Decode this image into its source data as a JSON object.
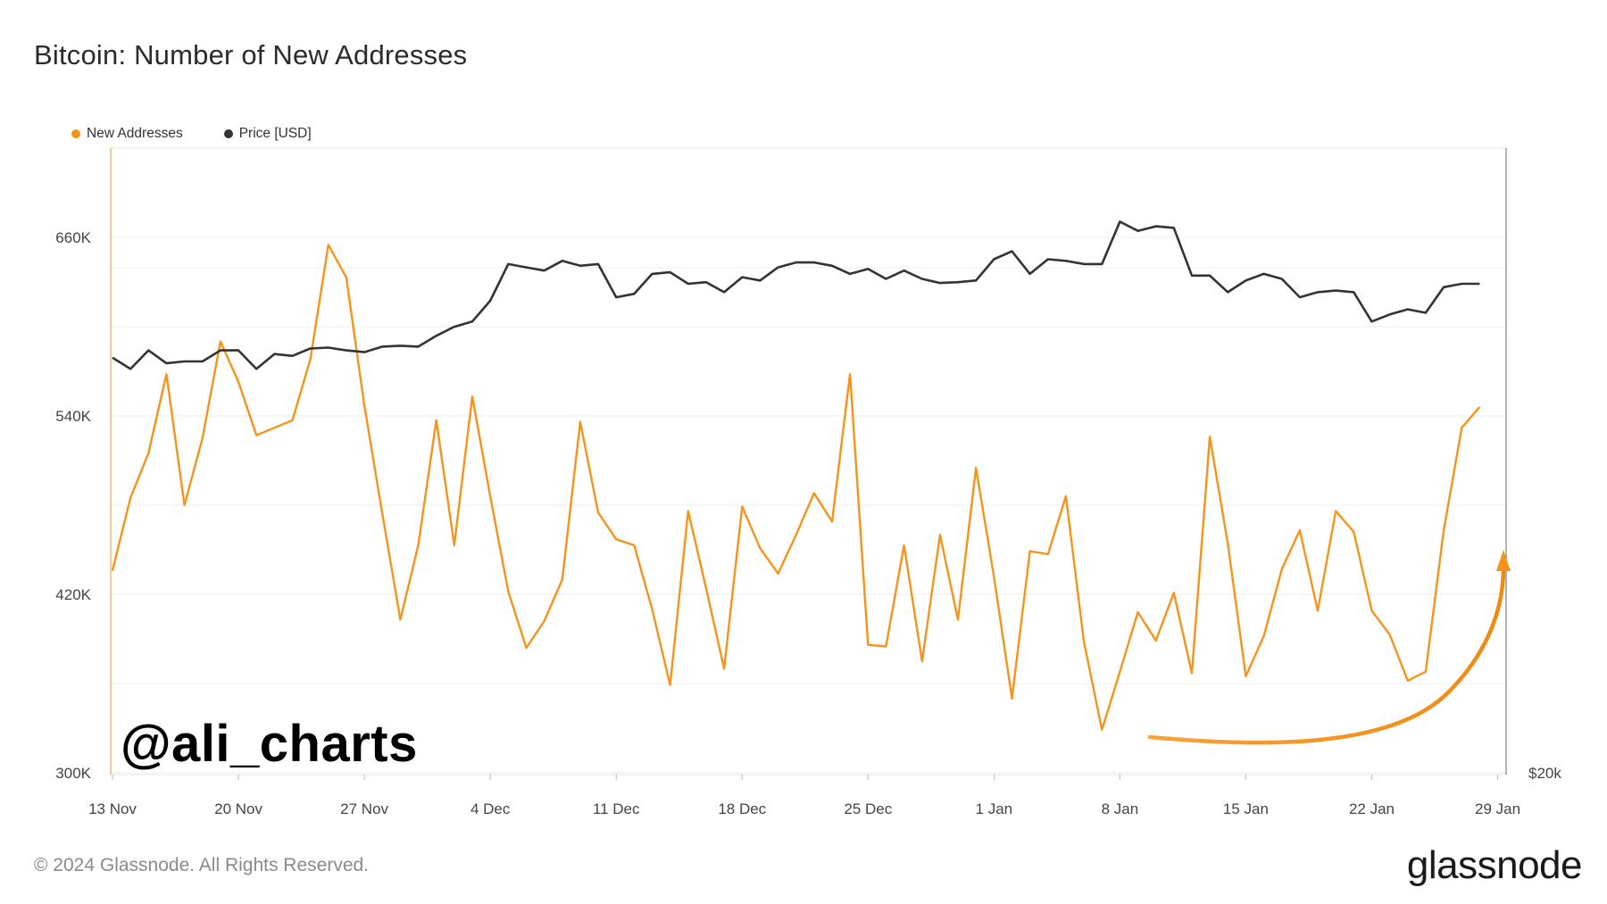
{
  "title": "Bitcoin: Number of New Addresses",
  "legend": [
    {
      "label": "New Addresses",
      "color": "#f7931a"
    },
    {
      "label": "Price [USD]",
      "color": "#333333"
    }
  ],
  "watermark": "@ali_charts",
  "footer": "© 2024 Glassnode. All Rights Reserved.",
  "brand": "glassnode",
  "colors": {
    "new_addresses": "#f7931a",
    "price": "#333333",
    "arrow": "#f7931a",
    "grid": "#ececec"
  },
  "chart_data": {
    "type": "line",
    "title": "Bitcoin: Number of New Addresses",
    "x_start": "2023-11-13",
    "x_ticks": [
      "13 Nov",
      "20 Nov",
      "27 Nov",
      "4 Dec",
      "11 Dec",
      "18 Dec",
      "25 Dec",
      "1 Jan",
      "8 Jan",
      "15 Jan",
      "22 Jan",
      "29 Jan"
    ],
    "y_left": {
      "ticks": [
        "300K",
        "420K",
        "540K",
        "660K"
      ],
      "range": [
        300000,
        720000
      ]
    },
    "y_right": {
      "ticks": [
        "$20k"
      ],
      "scale": "log"
    },
    "grid": true,
    "legend_position": "top-left",
    "series": [
      {
        "name": "New Addresses",
        "axis": "left",
        "values": [
          436000,
          485000,
          515000,
          568000,
          480000,
          525000,
          590000,
          563000,
          527000,
          532000,
          537000,
          578000,
          655000,
          633000,
          547000,
          474000,
          403000,
          453000,
          537000,
          453000,
          553000,
          486000,
          422000,
          384000,
          402000,
          430000,
          536000,
          475000,
          457000,
          453000,
          410000,
          359000,
          476000,
          424000,
          370000,
          479000,
          451000,
          434000,
          460000,
          488000,
          469000,
          568000,
          386000,
          385000,
          453000,
          375000,
          460000,
          403000,
          505000,
          432000,
          350000,
          449000,
          447000,
          486000,
          388000,
          329000,
          368000,
          408000,
          389000,
          421000,
          367000,
          526000,
          454000,
          365000,
          392000,
          437000,
          463000,
          409000,
          476000,
          462000,
          409000,
          393000,
          362000,
          368000,
          463000,
          532000,
          546000
        ]
      },
      {
        "name": "Price [USD]",
        "axis": "right",
        "values": [
          36800,
          36200,
          37200,
          36500,
          36600,
          36600,
          37200,
          37200,
          36200,
          37000,
          36900,
          37300,
          37350,
          37200,
          37100,
          37400,
          37450,
          37400,
          38000,
          38500,
          38800,
          40000,
          42200,
          42000,
          41800,
          42400,
          42100,
          42200,
          40200,
          40400,
          41600,
          41700,
          41000,
          41100,
          40500,
          41400,
          41200,
          42000,
          42300,
          42300,
          42100,
          41600,
          41900,
          41300,
          41800,
          41300,
          41050,
          41100,
          41200,
          42500,
          43000,
          41600,
          42500,
          42400,
          42200,
          42200,
          44900,
          44300,
          44600,
          44500,
          41500,
          41500,
          40500,
          41200,
          41600,
          41300,
          40200,
          40500,
          40600,
          40500,
          38800,
          39200,
          39500,
          39300,
          40800,
          41000,
          41000
        ]
      }
    ],
    "annotation": "orange curved arrow pointing up at the latest values"
  }
}
